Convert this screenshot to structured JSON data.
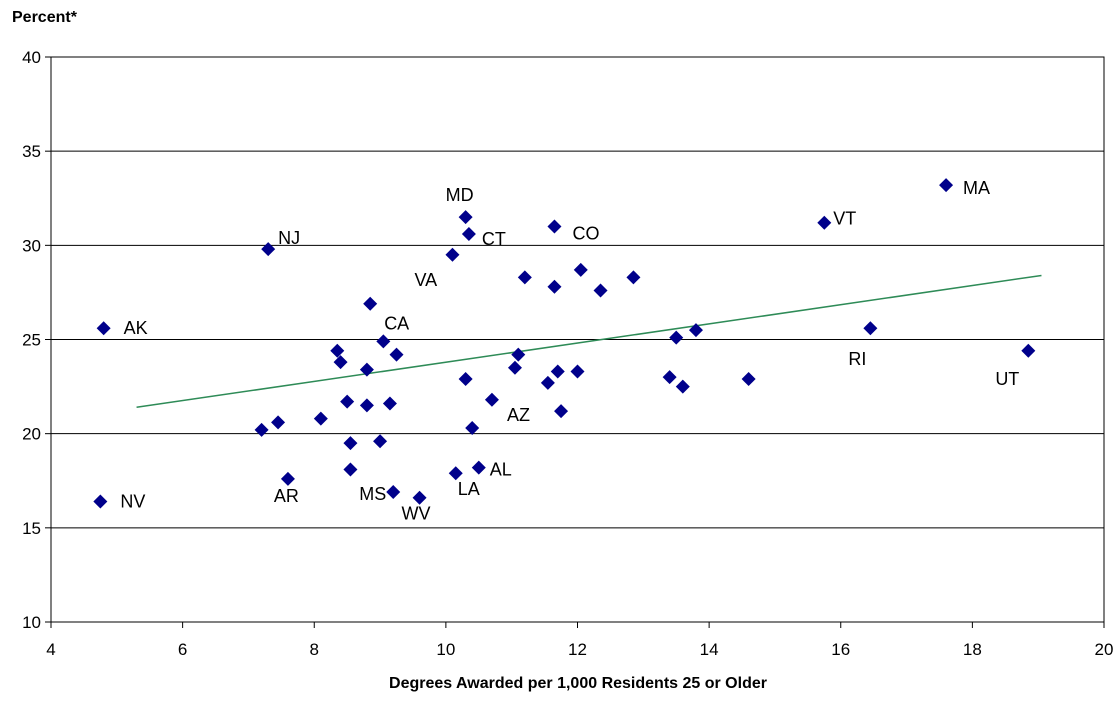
{
  "chart_data": {
    "type": "scatter",
    "title": "",
    "ylabel": "Percent*",
    "xlabel": "Degrees Awarded per 1,000 Residents 25 or Older",
    "xlim": [
      4,
      20
    ],
    "ylim": [
      10,
      40
    ],
    "xticks": [
      "4",
      "6",
      "8",
      "10",
      "12",
      "14",
      "16",
      "18",
      "20"
    ],
    "yticks": [
      "10",
      "15",
      "20",
      "25",
      "30",
      "35",
      "40"
    ],
    "grid": "horizontal",
    "marker_color": "#00008B",
    "trendline_color": "#2E8B57",
    "trendline": {
      "x": [
        5.3,
        19.05
      ],
      "y": [
        21.4,
        28.4
      ]
    },
    "points": [
      {
        "x": 4.8,
        "y": 25.6,
        "label": "AK"
      },
      {
        "x": 4.75,
        "y": 16.4,
        "label": "NV"
      },
      {
        "x": 7.3,
        "y": 29.8,
        "label": "NJ"
      },
      {
        "x": 7.2,
        "y": 20.2,
        "label": ""
      },
      {
        "x": 7.45,
        "y": 20.6,
        "label": ""
      },
      {
        "x": 7.6,
        "y": 17.6,
        "label": "AR"
      },
      {
        "x": 8.1,
        "y": 20.8,
        "label": ""
      },
      {
        "x": 8.35,
        "y": 24.4,
        "label": ""
      },
      {
        "x": 8.4,
        "y": 23.8,
        "label": ""
      },
      {
        "x": 8.5,
        "y": 21.7,
        "label": ""
      },
      {
        "x": 8.55,
        "y": 19.5,
        "label": ""
      },
      {
        "x": 8.55,
        "y": 18.1,
        "label": ""
      },
      {
        "x": 8.8,
        "y": 23.4,
        "label": ""
      },
      {
        "x": 8.85,
        "y": 26.9,
        "label": "CA"
      },
      {
        "x": 8.8,
        "y": 21.5,
        "label": ""
      },
      {
        "x": 9.0,
        "y": 19.6,
        "label": ""
      },
      {
        "x": 9.05,
        "y": 24.9,
        "label": ""
      },
      {
        "x": 9.15,
        "y": 21.6,
        "label": ""
      },
      {
        "x": 9.2,
        "y": 16.9,
        "label": "MS"
      },
      {
        "x": 9.25,
        "y": 24.2,
        "label": ""
      },
      {
        "x": 9.6,
        "y": 16.6,
        "label": "WV"
      },
      {
        "x": 10.1,
        "y": 29.5,
        "label": "VA"
      },
      {
        "x": 10.15,
        "y": 17.9,
        "label": "LA"
      },
      {
        "x": 10.3,
        "y": 22.9,
        "label": ""
      },
      {
        "x": 10.3,
        "y": 31.5,
        "label": "MD"
      },
      {
        "x": 10.35,
        "y": 30.6,
        "label": "CT"
      },
      {
        "x": 10.4,
        "y": 20.3,
        "label": ""
      },
      {
        "x": 10.5,
        "y": 18.2,
        "label": "AL"
      },
      {
        "x": 10.7,
        "y": 21.8,
        "label": "AZ"
      },
      {
        "x": 11.05,
        "y": 23.5,
        "label": ""
      },
      {
        "x": 11.1,
        "y": 24.2,
        "label": ""
      },
      {
        "x": 11.2,
        "y": 28.3,
        "label": ""
      },
      {
        "x": 11.55,
        "y": 22.7,
        "label": ""
      },
      {
        "x": 11.65,
        "y": 31.0,
        "label": "CO"
      },
      {
        "x": 11.65,
        "y": 27.8,
        "label": ""
      },
      {
        "x": 11.7,
        "y": 23.3,
        "label": ""
      },
      {
        "x": 11.75,
        "y": 21.2,
        "label": ""
      },
      {
        "x": 12.0,
        "y": 23.3,
        "label": ""
      },
      {
        "x": 12.05,
        "y": 28.7,
        "label": ""
      },
      {
        "x": 12.35,
        "y": 27.6,
        "label": ""
      },
      {
        "x": 12.85,
        "y": 28.3,
        "label": ""
      },
      {
        "x": 13.4,
        "y": 23.0,
        "label": ""
      },
      {
        "x": 13.5,
        "y": 25.1,
        "label": ""
      },
      {
        "x": 13.6,
        "y": 22.5,
        "label": ""
      },
      {
        "x": 13.8,
        "y": 25.5,
        "label": ""
      },
      {
        "x": 14.6,
        "y": 22.9,
        "label": ""
      },
      {
        "x": 15.75,
        "y": 31.2,
        "label": "VT"
      },
      {
        "x": 16.45,
        "y": 25.6,
        "label": "RI"
      },
      {
        "x": 17.6,
        "y": 33.2,
        "label": "MA"
      },
      {
        "x": 18.85,
        "y": 24.4,
        "label": "UT"
      }
    ]
  }
}
